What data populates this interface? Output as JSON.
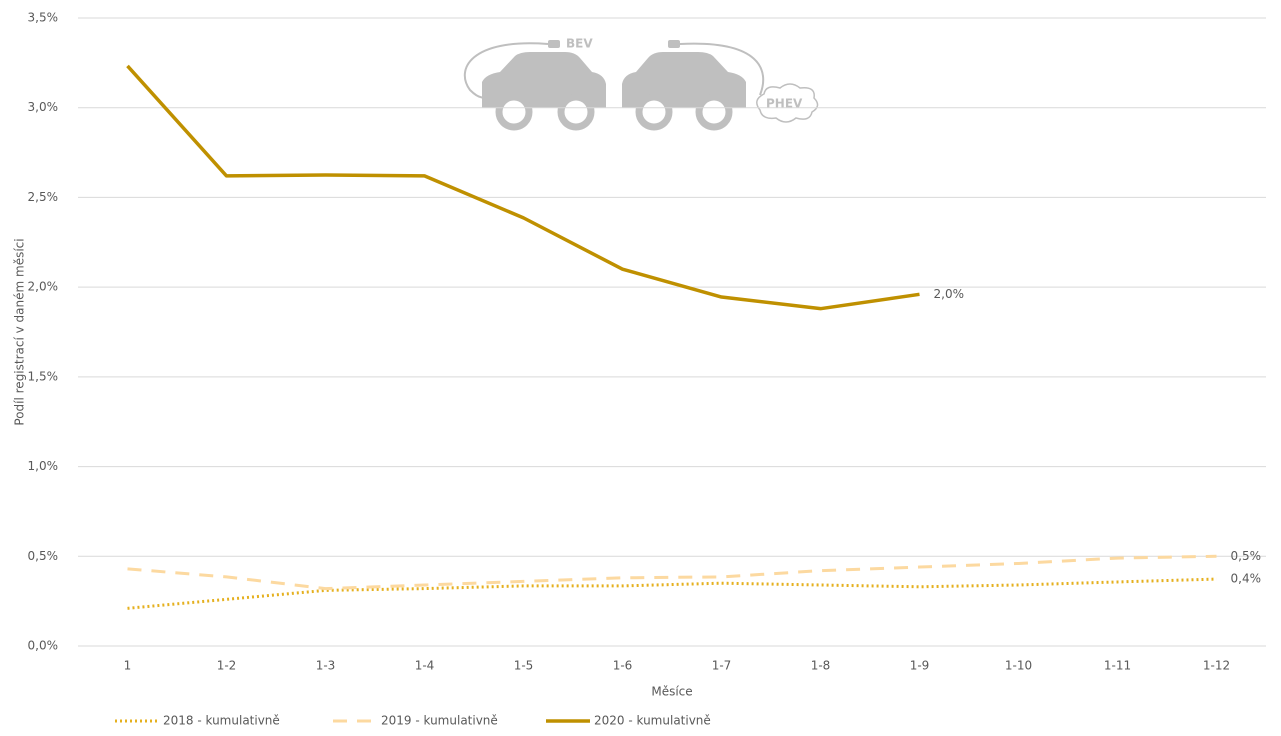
{
  "chart_data": {
    "type": "line",
    "y_label": "Podíl registrací v daném měsíci",
    "x_label": "Měsíce",
    "annotations": [
      "BEV",
      "PHEV"
    ],
    "categories": [
      "1",
      "1-2",
      "1-3",
      "1-4",
      "1-5",
      "1-6",
      "1-7",
      "1-8",
      "1-9",
      "1-10",
      "1-11",
      "1-12"
    ],
    "series": [
      {
        "name": "2018 - kumulativně",
        "color": "#e5b01f",
        "dash": "dotted",
        "values": [
          0.21,
          0.26,
          0.31,
          0.32,
          0.335,
          0.335,
          0.35,
          0.34,
          0.33,
          0.34,
          0.357,
          0.373
        ],
        "value_labels": [
          null,
          null,
          null,
          null,
          null,
          null,
          null,
          null,
          null,
          null,
          null,
          "0,4%"
        ]
      },
      {
        "name": "2019 - kumulativně",
        "color": "#fcd9a0",
        "dash": "dashed",
        "values": [
          0.43,
          0.385,
          0.32,
          0.34,
          0.36,
          0.38,
          0.385,
          0.42,
          0.44,
          0.46,
          0.49,
          0.5
        ],
        "value_labels": [
          null,
          null,
          null,
          null,
          null,
          null,
          null,
          null,
          null,
          null,
          null,
          "0,5%"
        ]
      },
      {
        "name": "2020 - kumulativně",
        "color": "#bf9000",
        "dash": "solid",
        "values": [
          3.233,
          2.62,
          2.625,
          2.62,
          2.386,
          2.1,
          1.945,
          1.88,
          1.96,
          null,
          null,
          null
        ],
        "value_labels": [
          null,
          null,
          null,
          null,
          null,
          null,
          null,
          null,
          "2,0%",
          null,
          null,
          null
        ]
      }
    ],
    "ylim": [
      0,
      3.5
    ],
    "yticks": [
      {
        "value": 0,
        "label": "0,0%"
      },
      {
        "value": 0.5,
        "label": "0,5%"
      },
      {
        "value": 1,
        "label": "1,0%"
      },
      {
        "value": 1.5,
        "label": "1,5%"
      },
      {
        "value": 2,
        "label": "2,0%"
      },
      {
        "value": 2.5,
        "label": "2,5%"
      },
      {
        "value": 3,
        "label": "3,0%"
      },
      {
        "value": 3.5,
        "label": "3,5%"
      }
    ],
    "grid": true,
    "legend": "bottom-left"
  }
}
